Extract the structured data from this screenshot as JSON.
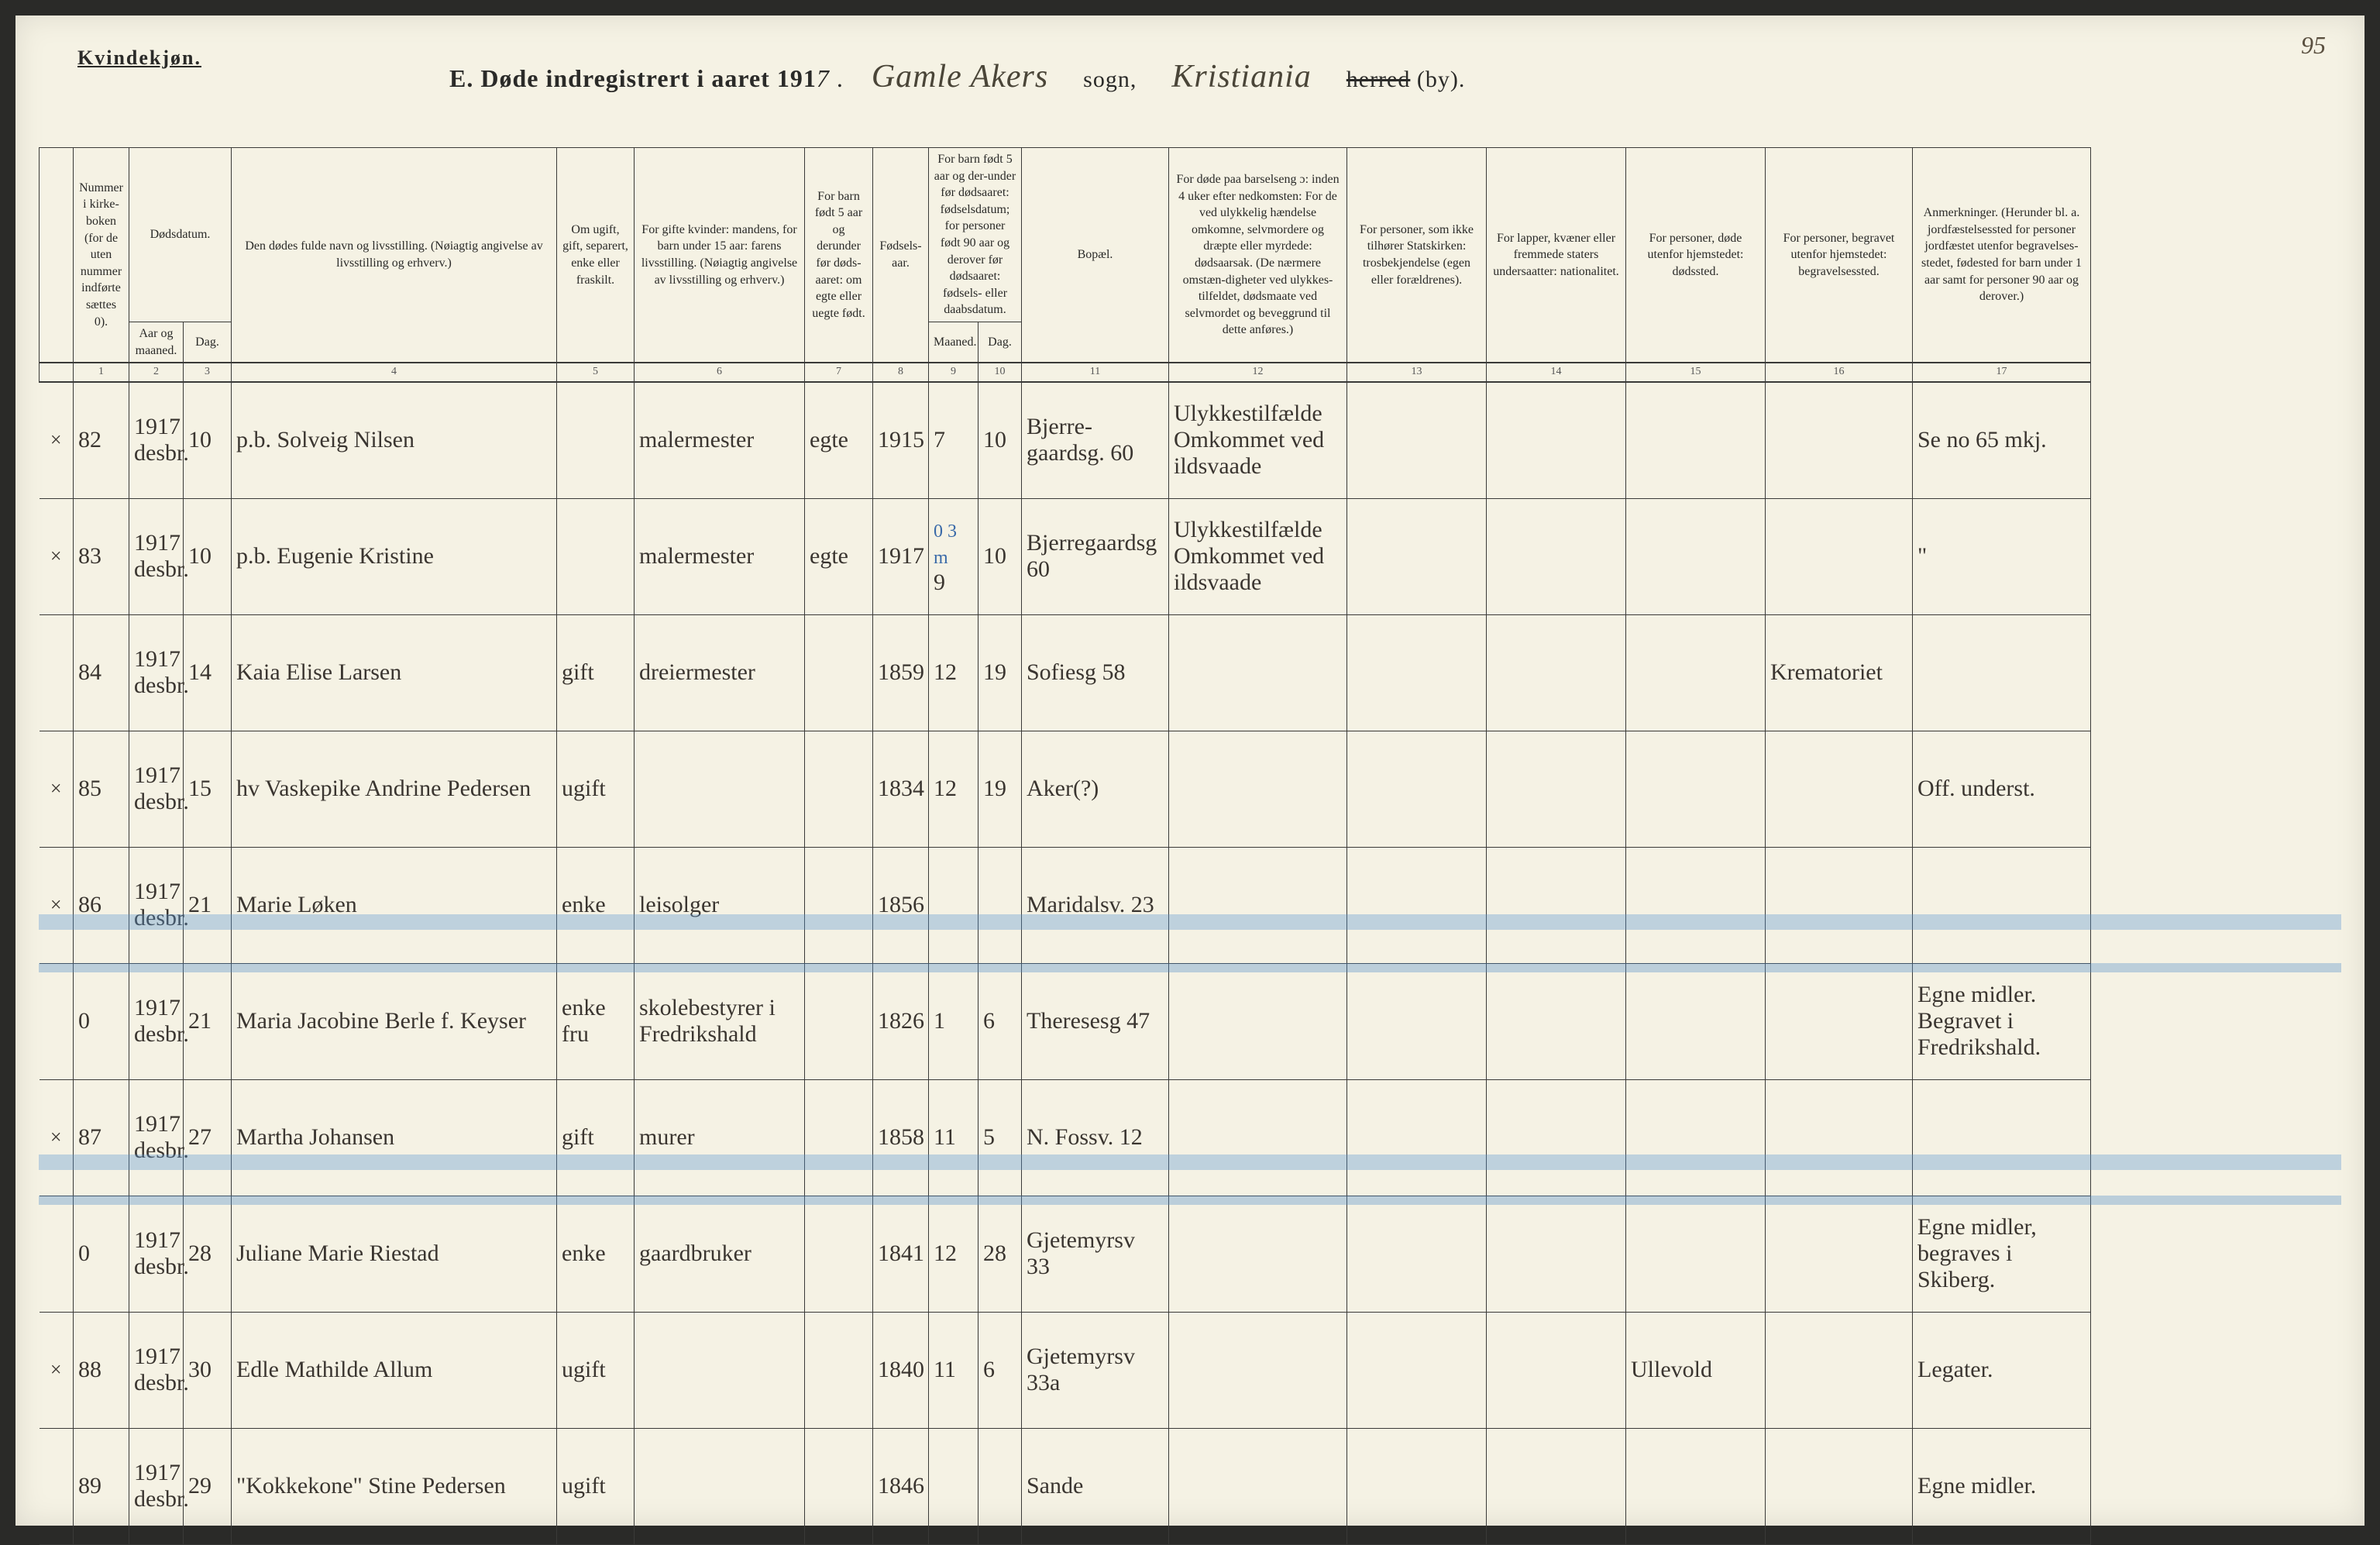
{
  "page_number": "95",
  "header": {
    "gender": "Kvindekjøn.",
    "title_prefix": "E.  Døde indregistrert i aaret 191",
    "year_suffix": "7",
    "parish_handwritten": "Gamle Akers",
    "sogn_label": "sogn,",
    "city_handwritten": "Kristiania",
    "herred_label_strike": "herred",
    "herred_label_suffix": "(by)."
  },
  "columns": {
    "h1": "Nummer i kirke-boken (for de uten nummer indførte sættes 0).",
    "h2": "Dødsdatum.",
    "h2a": "Aar og maaned.",
    "h2b": "Dag.",
    "h3": "Den dødes fulde navn og livsstilling. (Nøiagtig angivelse av livsstilling og erhverv.)",
    "h4": "Om ugift, gift, separert, enke eller fraskilt.",
    "h5": "For gifte kvinder: mandens, for barn under 15 aar: farens livsstilling. (Nøiagtig angivelse av livsstilling og erhverv.)",
    "h6": "For barn født 5 aar og derunder før døds-aaret: om egte eller uegte født.",
    "h7": "Fødsels-aar.",
    "h8": "For barn født 5 aar og der-under før dødsaaret: fødselsdatum; for personer født 90 aar og derover før dødsaaret: fødsels- eller daabsdatum.",
    "h8a": "Maaned.",
    "h8b": "Dag.",
    "h9": "Bopæl.",
    "h10": "For døde paa barselseng ɔ: inden 4 uker efter nedkomsten: For de ved ulykkelig hændelse omkomne, selvmordere og dræpte eller myrdede: dødsaarsak. (De nærmere omstæn-digheter ved ulykkes-tilfeldet, dødsmaate ved selvmordet og beveggrund til dette anføres.)",
    "h11": "For personer, som ikke tilhører Statskirken: trosbekjendelse (egen eller forældrenes).",
    "h12": "For lapper, kvæner eller fremmede staters undersaatter: nationalitet.",
    "h13": "For personer, døde utenfor hjemstedet: dødssted.",
    "h14": "For personer, begravet utenfor hjemstedet: begravelsessted.",
    "h15": "Anmerkninger. (Herunder bl. a. jordfæstelsessted for personer jordfæstet utenfor begravelses-stedet, fødested for barn under 1 aar samt for personer 90 aar og derover.)"
  },
  "colnums": [
    "1",
    "2",
    "3",
    "4",
    "5",
    "6",
    "7",
    "8",
    "9",
    "10",
    "11",
    "12",
    "13",
    "14",
    "15",
    "16",
    "17"
  ],
  "rows": [
    {
      "mark": "×",
      "num": "82",
      "year_month": "1917 desbr.",
      "day": "10",
      "name": "p.b. Solveig Nilsen",
      "civil": "",
      "spouse": "malermester",
      "legit": "egte",
      "birthyear": "1915",
      "bmonth": "7",
      "bday": "10",
      "residence": "Bjerre-gaardsg. 60",
      "cause": "Ulykkestilfælde Omkommet ved ildsvaade",
      "c11": "",
      "c12": "",
      "c13": "",
      "c14": "",
      "notes": "Se no 65 mkj."
    },
    {
      "mark": "×",
      "num": "83",
      "year_month": "1917 desbr.",
      "day": "10",
      "name": "p.b. Eugenie Kristine",
      "civil": "",
      "spouse": "malermester",
      "legit": "egte",
      "birthyear": "1917",
      "bmonth": "9",
      "bday": "10",
      "blue_note": "0 3 m",
      "residence": "Bjerregaardsg 60",
      "cause": "Ulykkestilfælde Omkommet ved ildsvaade",
      "c11": "",
      "c12": "",
      "c13": "",
      "c14": "",
      "notes": "\""
    },
    {
      "mark": "",
      "num": "84",
      "year_month": "1917 desbr.",
      "day": "14",
      "name": "Kaia Elise Larsen",
      "civil": "gift",
      "spouse": "dreiermester",
      "legit": "",
      "birthyear": "1859",
      "bmonth": "12",
      "bday": "19",
      "residence": "Sofiesg 58",
      "cause": "",
      "c11": "",
      "c12": "",
      "c13": "",
      "c14": "Krematoriet",
      "notes": ""
    },
    {
      "mark": "×",
      "num": "85",
      "year_month": "1917 desbr.",
      "day": "15",
      "name": "hv Vaskepike Andrine Pedersen",
      "civil": "ugift",
      "spouse": "",
      "legit": "",
      "birthyear": "1834",
      "bmonth": "12",
      "bday": "19",
      "residence": "Aker(?)",
      "cause": "",
      "c11": "",
      "c12": "",
      "c13": "",
      "c14": "",
      "notes": "Off. underst."
    },
    {
      "mark": "×",
      "num": "86",
      "year_month": "1917 desbr.",
      "day": "21",
      "name": "Marie Løken",
      "civil": "enke",
      "spouse": "leisolger",
      "legit": "",
      "birthyear": "1856",
      "bmonth": "",
      "bday": "",
      "residence": "Maridalsv. 23",
      "cause": "",
      "c11": "",
      "c12": "",
      "c13": "",
      "c14": "",
      "notes": ""
    },
    {
      "mark": "",
      "num": "0",
      "year_month": "1917 desbr.",
      "day": "21",
      "name": "Maria Jacobine Berle f. Keyser",
      "civil": "enke fru",
      "spouse": "skolebestyrer i Fredrikshald",
      "legit": "",
      "birthyear": "1826",
      "bmonth": "1",
      "bday": "6",
      "residence": "Theresesg 47",
      "cause": "",
      "c11": "",
      "c12": "",
      "c13": "",
      "c14": "",
      "notes": "Egne midler. Begravet i Fredrikshald.",
      "highlighted": true
    },
    {
      "mark": "×",
      "num": "87",
      "year_month": "1917 desbr.",
      "day": "27",
      "name": "Martha Johansen",
      "civil": "gift",
      "spouse": "murer",
      "legit": "",
      "birthyear": "1858",
      "bmonth": "11",
      "bday": "5",
      "residence": "N. Fossv. 12",
      "cause": "",
      "c11": "",
      "c12": "",
      "c13": "",
      "c14": "",
      "notes": ""
    },
    {
      "mark": "",
      "num": "0",
      "year_month": "1917 desbr.",
      "day": "28",
      "name": "Juliane Marie Riestad",
      "civil": "enke",
      "spouse": "gaardbruker",
      "legit": "",
      "birthyear": "1841",
      "bmonth": "12",
      "bday": "28",
      "residence": "Gjetemyrsv 33",
      "cause": "",
      "c11": "",
      "c12": "",
      "c13": "",
      "c14": "",
      "notes": "Egne midler, begraves i Skiberg.",
      "highlighted": true
    },
    {
      "mark": "×",
      "num": "88",
      "year_month": "1917 desbr.",
      "day": "30",
      "name": "Edle Mathilde Allum",
      "civil": "ugift",
      "spouse": "",
      "legit": "",
      "birthyear": "1840",
      "bmonth": "11",
      "bday": "6",
      "residence": "Gjetemyrsv 33a",
      "cause": "",
      "c11": "",
      "c12": "",
      "c13": "Ullevold",
      "c14": "",
      "notes": "Legater."
    },
    {
      "mark": "",
      "num": "89",
      "year_month": "1917 desbr.",
      "day": "29",
      "name": "\"Kokkekone\" Stine Pedersen",
      "civil": "ugift",
      "spouse": "",
      "legit": "",
      "birthyear": "1846",
      "bmonth": "",
      "bday": "",
      "residence": "Sande",
      "cause": "",
      "c11": "",
      "c12": "",
      "c13": "",
      "c14": "",
      "notes": "Egne midler."
    }
  ],
  "highlight_positions": [
    1160,
    1470
  ],
  "colors": {
    "paper": "#f5f2e4",
    "ink": "#2a2a28",
    "handwriting": "#3a3530",
    "blue_pencil": "rgba(90,150,210,0.35)",
    "blue_ink": "#3a6aa8"
  }
}
